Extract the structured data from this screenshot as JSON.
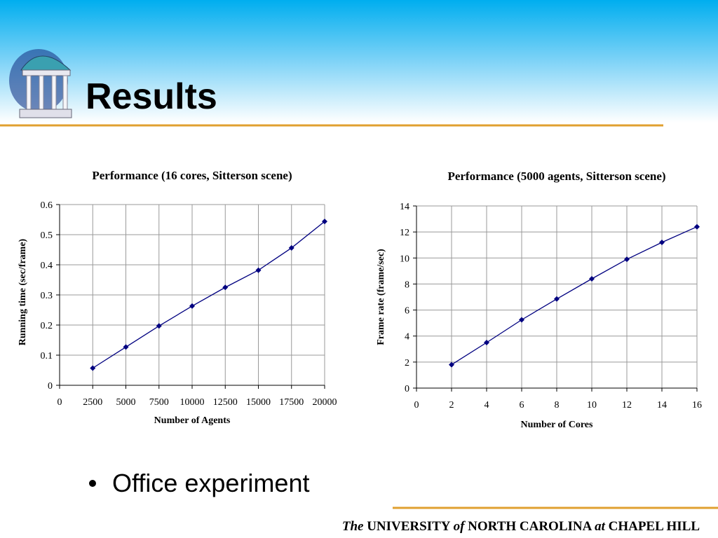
{
  "slide": {
    "title": "Results",
    "bullets": [
      "Office experiment"
    ],
    "footer": [
      "The",
      "UNIVERSITY",
      "of",
      "NORTH CAROLINA",
      "at",
      "CHAPEL HILL"
    ]
  },
  "chart_data": [
    {
      "type": "line",
      "title": "Performance (16 cores, Sitterson scene)",
      "x_label": "Number of Agents",
      "y_label": "Running time (sec/frame)",
      "x": [
        2500,
        5000,
        7500,
        10000,
        12500,
        15000,
        17500,
        20000
      ],
      "series": [
        {
          "color": "#000080",
          "values": [
            0.057,
            0.127,
            0.197,
            0.263,
            0.325,
            0.382,
            0.456,
            0.544
          ]
        }
      ],
      "xlim": [
        0,
        20000
      ],
      "xticks": [
        0,
        2500,
        5000,
        7500,
        10000,
        12500,
        15000,
        17500,
        20000
      ],
      "ylim": [
        0,
        0.6
      ],
      "yticks": [
        0,
        0.1,
        0.2,
        0.3,
        0.4,
        0.5,
        0.6
      ],
      "grid": true
    },
    {
      "type": "line",
      "title": "Performance (5000 agents, Sitterson scene)",
      "x_label": "Number of Cores",
      "y_label": "Frame rate (frame/sec)",
      "x": [
        2,
        4,
        6,
        8,
        10,
        12,
        14,
        16
      ],
      "series": [
        {
          "color": "#000080",
          "values": [
            1.8,
            3.5,
            5.25,
            6.85,
            8.4,
            9.9,
            11.2,
            12.4
          ]
        }
      ],
      "xlim": [
        0,
        16
      ],
      "xticks": [
        0,
        2,
        4,
        6,
        8,
        10,
        12,
        14,
        16
      ],
      "ylim": [
        0,
        14
      ],
      "yticks": [
        0,
        2,
        4,
        6,
        8,
        10,
        12,
        14
      ],
      "grid": true
    }
  ]
}
